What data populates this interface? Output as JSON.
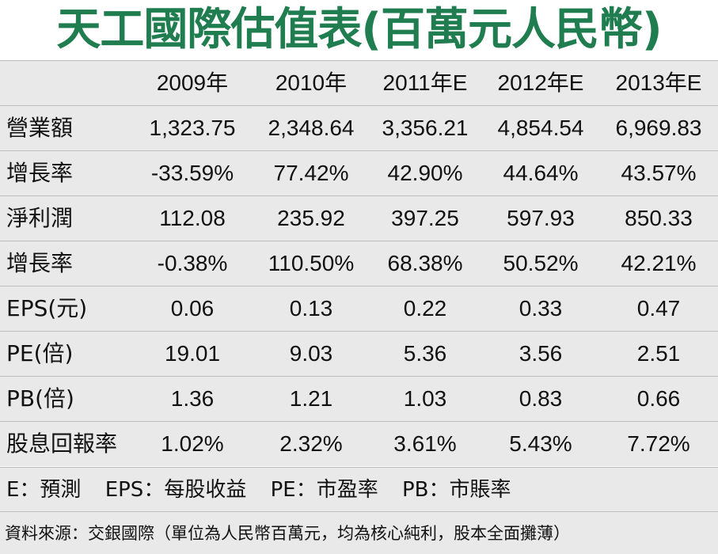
{
  "title": "天工國際估值表(百萬元人民幣)",
  "header": {
    "label": "",
    "years": [
      "2009年",
      "2010年",
      "2011年E",
      "2012年E",
      "2013年E"
    ]
  },
  "rows": [
    {
      "label": "營業額",
      "values": [
        "1,323.75",
        "2,348.64",
        "3,356.21",
        "4,854.54",
        "6,969.83"
      ]
    },
    {
      "label": "增長率",
      "values": [
        "-33.59%",
        "77.42%",
        "42.90%",
        "44.64%",
        "43.57%"
      ]
    },
    {
      "label": "淨利潤",
      "values": [
        "112.08",
        "235.92",
        "397.25",
        "597.93",
        "850.33"
      ]
    },
    {
      "label": "增長率",
      "values": [
        "-0.38%",
        "110.50%",
        "68.38%",
        "50.52%",
        "42.21%"
      ]
    },
    {
      "label": "EPS(元)",
      "values": [
        "0.06",
        "0.13",
        "0.22",
        "0.33",
        "0.47"
      ]
    },
    {
      "label": "PE(倍)",
      "values": [
        "19.01",
        "9.03",
        "5.36",
        "3.56",
        "2.51"
      ]
    },
    {
      "label": "PB(倍)",
      "values": [
        "1.36",
        "1.21",
        "1.03",
        "0.83",
        "0.66"
      ]
    },
    {
      "label": "股息回報率",
      "values": [
        "1.02%",
        "2.32%",
        "3.61%",
        "5.43%",
        "7.72%"
      ]
    }
  ],
  "legend": {
    "e": "E：預測",
    "eps": "EPS：每股收益",
    "pe": "PE：市盈率",
    "pb": "PB：市賬率"
  },
  "source": "資料來源：交銀國際（單位為人民幣百萬元，均為核心純利，股本全面攤薄）",
  "colors": {
    "title": "#1f7d4f",
    "row_bg": "#e9e9e9",
    "divider": "#bdbdbd"
  }
}
